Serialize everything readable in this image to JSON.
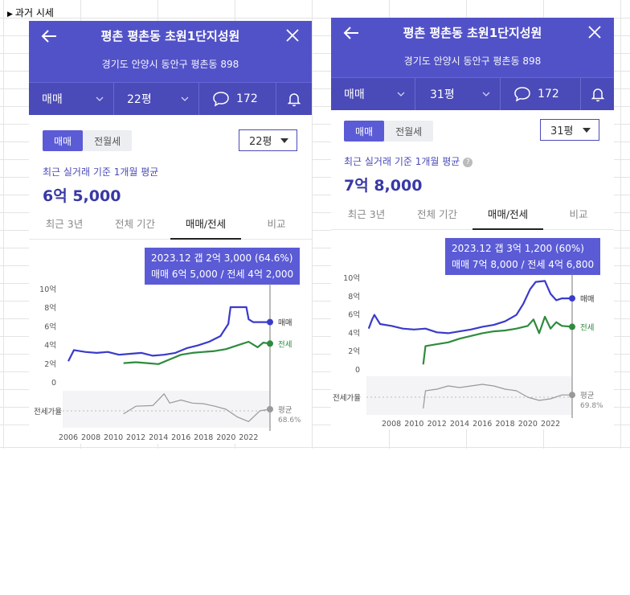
{
  "sheet": {
    "title": "과거 시세"
  },
  "panels": [
    {
      "header": {
        "title": "평촌 평촌동 초원1단지성원",
        "address": "경기도 안양시 동안구 평촌동 898"
      },
      "bar": {
        "deal_type": "매매",
        "size": "22평",
        "comments": "172"
      },
      "toggle": [
        "매매",
        "전월세"
      ],
      "size_select": "22평",
      "avg_label": "최근 실거래 기준 1개월 평균",
      "avg_value": "6억 5,000",
      "period_tabs": [
        "최근 3년",
        "전체 기간",
        "매매/전세",
        "비교"
      ],
      "tooltip": {
        "line1": "2023.12  갭 2억 3,000 (64.6%)",
        "line2": "매매 6억 5,000 / 전세 4억 2,000"
      },
      "chart_data": {
        "type": "line",
        "x_ticks": [
          "2006",
          "2008",
          "2010",
          "2012",
          "2014",
          "2016",
          "2018",
          "2020",
          "2022"
        ],
        "y_ticks": [
          "10억",
          "8억",
          "6억",
          "4억",
          "2억",
          "0"
        ],
        "ylim": [
          0,
          10
        ],
        "lower_axis_label": "전세가율",
        "series": [
          {
            "name": "매매",
            "color": "#3a3acb",
            "points": [
              [
                2006.0,
                2.3
              ],
              [
                2006.5,
                3.5
              ],
              [
                2007.5,
                3.3
              ],
              [
                2008.5,
                3.2
              ],
              [
                2009.5,
                3.3
              ],
              [
                2010.5,
                3.0
              ],
              [
                2011.5,
                3.1
              ],
              [
                2012.5,
                3.2
              ],
              [
                2013.5,
                2.9
              ],
              [
                2014.5,
                3.0
              ],
              [
                2015.5,
                3.2
              ],
              [
                2016.5,
                3.7
              ],
              [
                2017.5,
                4.0
              ],
              [
                2018.5,
                4.4
              ],
              [
                2019.5,
                5.0
              ],
              [
                2020.2,
                6.3
              ],
              [
                2020.4,
                8.1
              ],
              [
                2021.8,
                8.1
              ],
              [
                2022.0,
                6.8
              ],
              [
                2022.4,
                6.5
              ],
              [
                2023.0,
                6.5
              ],
              [
                2023.9,
                6.5
              ]
            ]
          },
          {
            "name": "전세",
            "color": "#2e8b3e",
            "points": [
              [
                2010.9,
                2.1
              ],
              [
                2012.0,
                2.2
              ],
              [
                2013.0,
                2.1
              ],
              [
                2014.0,
                2.0
              ],
              [
                2015.0,
                2.5
              ],
              [
                2016.0,
                3.0
              ],
              [
                2017.0,
                3.2
              ],
              [
                2018.0,
                3.3
              ],
              [
                2019.0,
                3.4
              ],
              [
                2020.0,
                3.6
              ],
              [
                2021.0,
                4.0
              ],
              [
                2022.0,
                4.4
              ],
              [
                2022.8,
                3.8
              ],
              [
                2023.3,
                4.3
              ],
              [
                2023.9,
                4.2
              ]
            ]
          },
          {
            "name": "평균",
            "color": "#999999",
            "label_value": "68.6%",
            "points": [
              [
                2010.9,
                0.45
              ],
              [
                2012.0,
                0.7
              ],
              [
                2013.5,
                0.72
              ],
              [
                2014.5,
                1.1
              ],
              [
                2015.0,
                0.8
              ],
              [
                2016.0,
                0.9
              ],
              [
                2017.0,
                0.8
              ],
              [
                2018.0,
                0.78
              ],
              [
                2019.0,
                0.7
              ],
              [
                2020.0,
                0.6
              ],
              [
                2021.0,
                0.35
              ],
              [
                2022.0,
                0.2
              ],
              [
                2023.0,
                0.55
              ],
              [
                2023.9,
                0.6
              ]
            ]
          }
        ],
        "x_range": [
          2005.5,
          2023.9
        ]
      }
    },
    {
      "header": {
        "title": "평촌 평촌동 초원1단지성원",
        "address": "경기도 안양시 동안구 평촌동 898"
      },
      "bar": {
        "deal_type": "매매",
        "size": "31평",
        "comments": "172"
      },
      "toggle": [
        "매매",
        "전월세"
      ],
      "size_select": "31평",
      "avg_label": "최근 실거래 기준 1개월 평균",
      "avg_value": "7억 8,000",
      "period_tabs": [
        "최근 3년",
        "전체 기간",
        "매매/전세",
        "비교"
      ],
      "tooltip": {
        "line1": "2023.12  갭 3억 1,200 (60%)",
        "line2": "매매 7억 8,000 / 전세 4억 6,800"
      },
      "chart_data": {
        "type": "line",
        "x_ticks": [
          "2008",
          "2010",
          "2012",
          "2014",
          "2016",
          "2018",
          "2020",
          "2022"
        ],
        "y_ticks": [
          "10억",
          "8억",
          "6억",
          "4억",
          "2억",
          "0"
        ],
        "ylim": [
          0,
          10
        ],
        "lower_axis_label": "전세가율",
        "series": [
          {
            "name": "매매",
            "color": "#3a3acb",
            "points": [
              [
                2006.0,
                4.5
              ],
              [
                2006.3,
                5.5
              ],
              [
                2006.5,
                6.0
              ],
              [
                2007.0,
                5.0
              ],
              [
                2008.0,
                4.8
              ],
              [
                2009.0,
                4.5
              ],
              [
                2010.0,
                4.4
              ],
              [
                2011.0,
                4.5
              ],
              [
                2012.0,
                4.1
              ],
              [
                2013.0,
                4.0
              ],
              [
                2014.0,
                4.2
              ],
              [
                2015.0,
                4.4
              ],
              [
                2016.0,
                4.7
              ],
              [
                2017.0,
                4.9
              ],
              [
                2018.0,
                5.3
              ],
              [
                2019.0,
                6.0
              ],
              [
                2019.6,
                7.2
              ],
              [
                2020.2,
                8.8
              ],
              [
                2020.7,
                9.6
              ],
              [
                2021.5,
                9.7
              ],
              [
                2022.0,
                8.3
              ],
              [
                2022.5,
                7.6
              ],
              [
                2023.0,
                7.8
              ],
              [
                2023.9,
                7.8
              ]
            ]
          },
          {
            "name": "전세",
            "color": "#2e8b3e",
            "points": [
              [
                2010.8,
                0.6
              ],
              [
                2011.0,
                2.6
              ],
              [
                2012.0,
                2.8
              ],
              [
                2013.0,
                3.0
              ],
              [
                2014.0,
                3.4
              ],
              [
                2015.0,
                3.7
              ],
              [
                2016.0,
                4.0
              ],
              [
                2017.0,
                4.2
              ],
              [
                2018.0,
                4.3
              ],
              [
                2019.0,
                4.5
              ],
              [
                2020.0,
                4.8
              ],
              [
                2020.5,
                5.5
              ],
              [
                2021.0,
                4.0
              ],
              [
                2021.5,
                5.8
              ],
              [
                2022.0,
                4.5
              ],
              [
                2022.5,
                5.2
              ],
              [
                2023.0,
                4.8
              ],
              [
                2023.9,
                4.7
              ]
            ]
          },
          {
            "name": "평균",
            "color": "#999999",
            "label_value": "69.8%",
            "points": [
              [
                2010.8,
                0.2
              ],
              [
                2011.0,
                0.75
              ],
              [
                2012.0,
                0.8
              ],
              [
                2013.0,
                0.9
              ],
              [
                2014.0,
                0.85
              ],
              [
                2015.0,
                0.9
              ],
              [
                2016.0,
                0.95
              ],
              [
                2017.0,
                0.9
              ],
              [
                2018.0,
                0.8
              ],
              [
                2019.0,
                0.75
              ],
              [
                2020.0,
                0.55
              ],
              [
                2021.0,
                0.45
              ],
              [
                2022.0,
                0.5
              ],
              [
                2023.0,
                0.62
              ],
              [
                2023.9,
                0.62
              ]
            ]
          }
        ],
        "x_range": [
          2005.8,
          2023.9
        ]
      }
    }
  ]
}
